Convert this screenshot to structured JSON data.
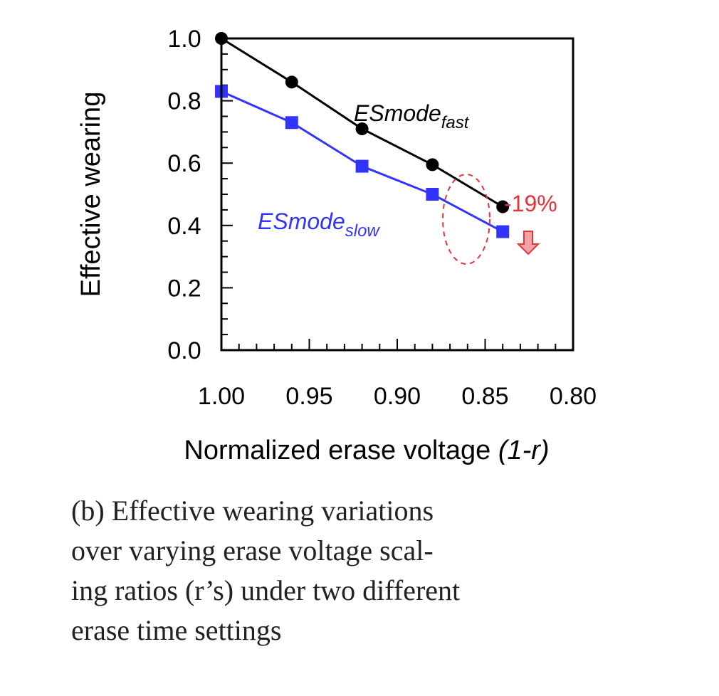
{
  "chart_data": {
    "type": "line",
    "x": [
      1.0,
      0.96,
      0.92,
      0.88,
      0.84
    ],
    "series": [
      {
        "name_base": "ESmode",
        "name_sub": "fast",
        "color": "#000000",
        "marker": "circle",
        "values": [
          1.0,
          0.86,
          0.71,
          0.595,
          0.46
        ]
      },
      {
        "name_base": "ESmode",
        "name_sub": "slow",
        "color": "#3333ff",
        "marker": "square",
        "values": [
          0.83,
          0.73,
          0.59,
          0.5,
          0.38
        ]
      }
    ],
    "xlabel": "Normalized erase voltage ",
    "xlabel_italic": "(1-r)",
    "ylabel": "Effective wearing",
    "xlim": [
      1.0,
      0.8
    ],
    "ylim": [
      0.0,
      1.0
    ],
    "xticks": [
      "1.00",
      "0.95",
      "0.90",
      "0.85",
      "0.80"
    ],
    "yticks": [
      "0.0",
      "0.2",
      "0.4",
      "0.6",
      "0.8",
      "1.0"
    ],
    "annotation": {
      "text": "-19%",
      "color": "#e8323a",
      "arrow": "down-arrow-icon"
    },
    "grid": false
  },
  "caption": {
    "lines": [
      "(b) Effective wearing variations",
      "over varying erase voltage scal-",
      "ing ratios (r’s) under two different",
      "erase time settings"
    ]
  }
}
